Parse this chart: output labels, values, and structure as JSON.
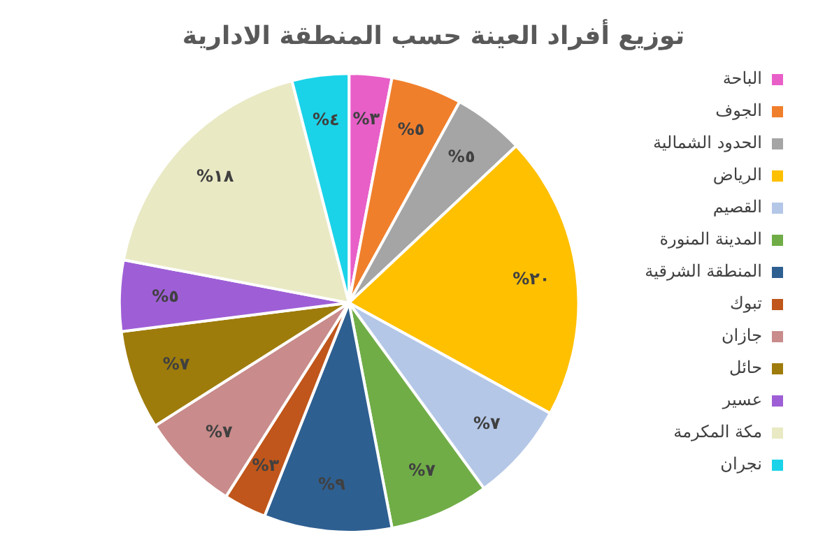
{
  "chart_data": {
    "type": "pie",
    "title": "توزيع أفراد العينة حسب المنطقة الادارية",
    "categories": [
      "الباحة",
      "الجوف",
      "الحدود الشمالية",
      "الرياض",
      "القصيم",
      "المدينة المنورة",
      "المنطقة الشرقية",
      "تبوك",
      "جازان",
      "حائل",
      "عسير",
      "مكة المكرمة",
      "نجران"
    ],
    "values": [
      3,
      5,
      5,
      20,
      7,
      7,
      9,
      3,
      7,
      7,
      5,
      18,
      4
    ],
    "value_labels": [
      "%٣",
      "%٥",
      "%٥",
      "%٢٠",
      "%٧",
      "%٧",
      "%٩",
      "%٣",
      "%٧",
      "%٧",
      "%٥",
      "%١٨",
      "%٤"
    ],
    "colors": [
      "#e85fc8",
      "#f07f2c",
      "#a5a5a5",
      "#ffc000",
      "#b4c7e7",
      "#70ad47",
      "#2e5f91",
      "#c0561b",
      "#c98b8b",
      "#9e7c0c",
      "#9e5fd6",
      "#e9e9c4",
      "#1ad3e8"
    ],
    "legend": "right"
  }
}
